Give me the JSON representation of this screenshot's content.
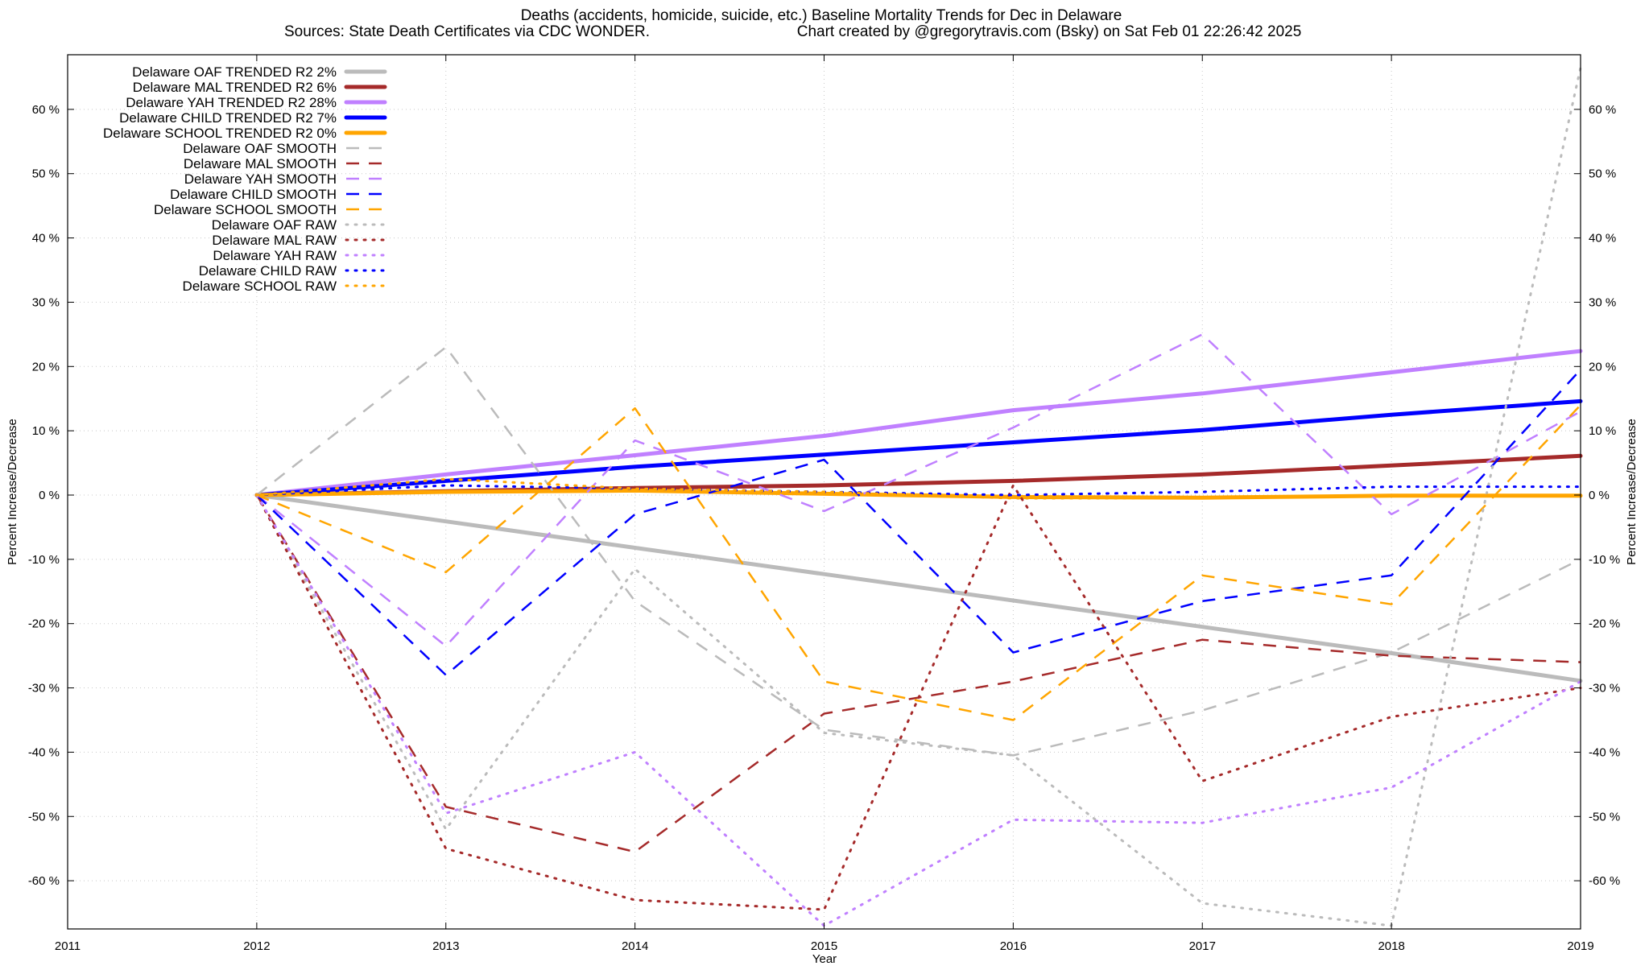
{
  "chart_data": {
    "type": "line",
    "title": "Deaths (accidents, homicide, suicide, etc.)  Baseline Mortality Trends for Dec in Delaware",
    "subtitle_left": "Sources: State Death Certificates via CDC WONDER.",
    "subtitle_right": "Chart created by @gregorytravis.com (Bsky) on Sat Feb 01 22:26:42 2025",
    "xlabel": "Year",
    "ylabel": "Percent Increase/Decrease",
    "ylabel_right": "Percent Increase/Decrease",
    "xlim": [
      2011,
      2019
    ],
    "ylim": [
      -67.5,
      68.5
    ],
    "x_ticks": [
      2011,
      2012,
      2013,
      2014,
      2015,
      2016,
      2017,
      2018,
      2019
    ],
    "x_tick_labels": [
      "2011",
      "2012",
      "2013",
      "2014",
      "2015",
      "2016",
      "2017",
      "2018",
      "2019"
    ],
    "y_ticks": [
      -60,
      -50,
      -40,
      -30,
      -20,
      -10,
      0,
      10,
      20,
      30,
      40,
      50,
      60
    ],
    "y_tick_labels": [
      "-60 %",
      "-50 %",
      "-40 %",
      "-30 %",
      "-20 %",
      "-10 %",
      "0 %",
      "10 %",
      "20 %",
      "30 %",
      "40 %",
      "50 %",
      "60 %"
    ],
    "grid": true,
    "legend_position": "top-left",
    "x": [
      2012,
      2013,
      2014,
      2015,
      2016,
      2017,
      2018,
      2019
    ],
    "series": [
      {
        "name": "Delaware OAF TRENDED R2   2%",
        "style": "trended",
        "color": "#bbbbbb",
        "values": [
          0,
          -4.1,
          -8.2,
          -12.3,
          -16.4,
          -20.5,
          -24.6,
          -28.9
        ]
      },
      {
        "name": "Delaware MAL TRENDED R2   6%",
        "style": "trended",
        "color": "#a52a2a",
        "values": [
          0,
          0.6,
          1.1,
          1.5,
          2.2,
          3.2,
          4.6,
          6.1
        ]
      },
      {
        "name": "Delaware YAH TRENDED R2  28%",
        "style": "trended",
        "color": "#c080ff",
        "values": [
          0,
          3.2,
          6.2,
          9.2,
          13.2,
          15.8,
          19.1,
          22.4
        ]
      },
      {
        "name": "Delaware CHILD TRENDED R2   7%",
        "style": "trended",
        "color": "#0000ff",
        "values": [
          0,
          2.2,
          4.4,
          6.3,
          8.2,
          10.1,
          12.5,
          14.6
        ]
      },
      {
        "name": "Delaware SCHOOL TRENDED R2   0%",
        "style": "trended",
        "color": "#ffa500",
        "values": [
          0,
          0.5,
          0.7,
          0.2,
          -0.3,
          -0.4,
          -0.1,
          -0.1
        ]
      },
      {
        "name": "Delaware OAF SMOOTH",
        "style": "smooth",
        "color": "#bbbbbb",
        "values": [
          0,
          23,
          -16.5,
          -36.5,
          -40.5,
          -33.5,
          -24.5,
          -10
        ]
      },
      {
        "name": "Delaware MAL SMOOTH",
        "style": "smooth",
        "color": "#a52a2a",
        "values": [
          0,
          -48.5,
          -55.5,
          -34,
          -29,
          -22.5,
          -25,
          -26
        ]
      },
      {
        "name": "Delaware YAH SMOOTH",
        "style": "smooth",
        "color": "#c080ff",
        "values": [
          0,
          -23.5,
          8.5,
          -2.5,
          10.5,
          25,
          -3,
          13
        ]
      },
      {
        "name": "Delaware CHILD SMOOTH",
        "style": "smooth",
        "color": "#0000ff",
        "values": [
          0,
          -28,
          -3,
          5.5,
          -24.5,
          -16.5,
          -12.5,
          19.5
        ]
      },
      {
        "name": "Delaware SCHOOL SMOOTH",
        "style": "smooth",
        "color": "#ffa500",
        "values": [
          0,
          -12,
          13.5,
          -29,
          -35,
          -12.5,
          -17,
          14
        ]
      },
      {
        "name": "Delaware OAF RAW",
        "style": "raw",
        "color": "#bbbbbb",
        "values": [
          0,
          -52,
          -11.5,
          -37,
          -40.5,
          -63.5,
          -67,
          66.5
        ]
      },
      {
        "name": "Delaware MAL RAW",
        "style": "raw",
        "color": "#a52a2a",
        "values": [
          0,
          -55,
          -63,
          -64.5,
          1.5,
          -44.5,
          -34.5,
          -30
        ]
      },
      {
        "name": "Delaware YAH RAW",
        "style": "raw",
        "color": "#c080ff",
        "values": [
          0,
          -49.5,
          -40,
          -67,
          -50.5,
          -51,
          -45.5,
          -29
        ]
      },
      {
        "name": "Delaware CHILD RAW",
        "style": "raw",
        "color": "#0000ff",
        "values": [
          0,
          1.5,
          1,
          0.5,
          0,
          0.5,
          1.3,
          1.3
        ]
      },
      {
        "name": "Delaware SCHOOL RAW",
        "style": "raw",
        "color": "#ffa500",
        "values": [
          0,
          2.5,
          1,
          0.5,
          -0.5,
          -0.5,
          0,
          0
        ]
      }
    ]
  }
}
